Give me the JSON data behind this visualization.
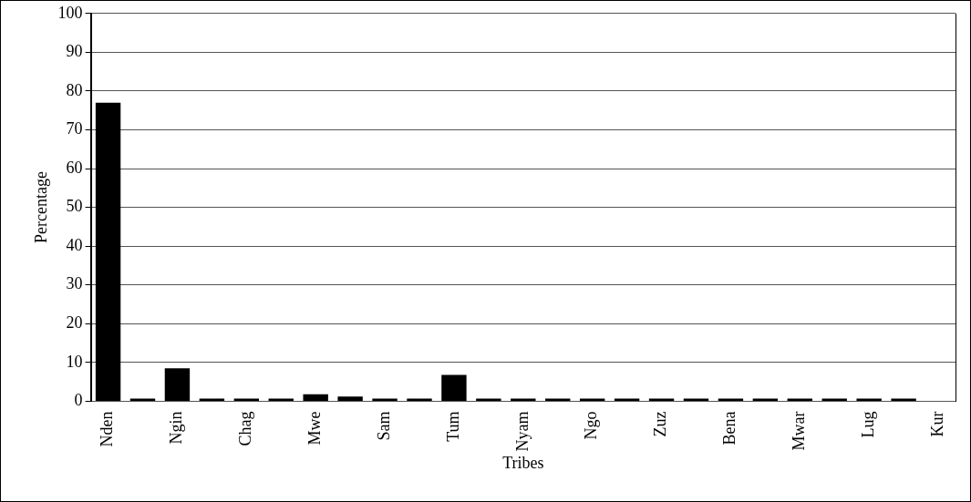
{
  "chart_data": {
    "type": "bar",
    "xlabel": "Tribes",
    "ylabel": "Percentage",
    "categories": [
      "Nden",
      null,
      "Ngin",
      null,
      "Chag",
      null,
      "Mwe",
      null,
      "Sam",
      null,
      "Tum",
      null,
      "Nyam",
      null,
      "Ngo",
      null,
      "Zuz",
      null,
      "Bena",
      null,
      "Mwar",
      null,
      "Lug",
      null,
      "Kur"
    ],
    "values": [
      77,
      0.7,
      8.5,
      0.7,
      0.7,
      0.7,
      1.8,
      1.2,
      0.7,
      0.7,
      6.8,
      0.7,
      0.7,
      0.7,
      0.7,
      0.7,
      0.7,
      0.7,
      0.7,
      0.7,
      0.7,
      0.7,
      0.7,
      0.7,
      0
    ],
    "color": "#000000",
    "ylim": [
      0,
      100
    ],
    "yticks": [
      0,
      10,
      20,
      30,
      40,
      50,
      60,
      70,
      80,
      90,
      100
    ],
    "grid": "y",
    "legend": false
  }
}
